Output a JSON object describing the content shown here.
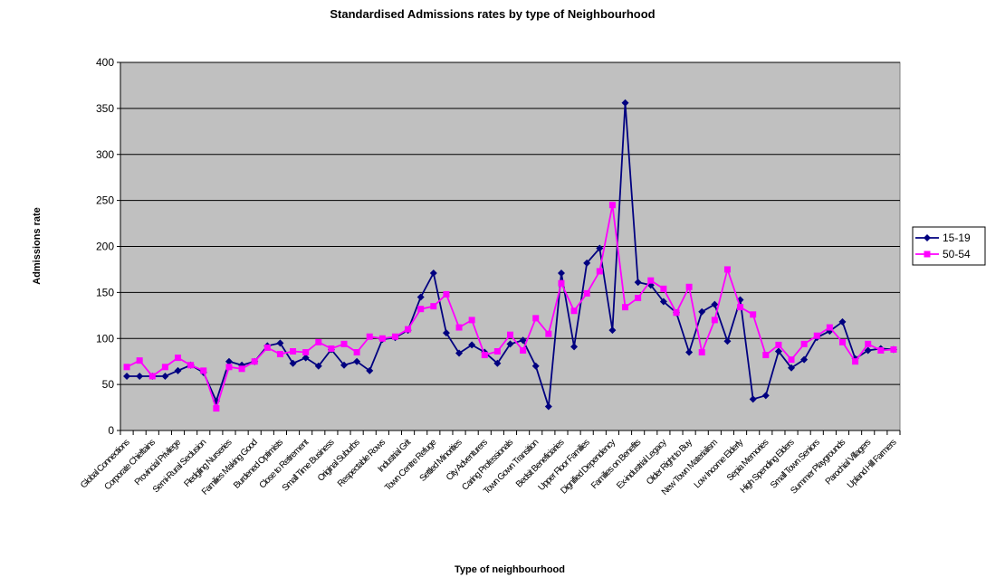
{
  "chart_data": {
    "type": "line",
    "title": "Standardised Admissions rates by type of Neighbourhood",
    "xlabel": "Type of neighbourhood",
    "ylabel": "Admissions rate",
    "ylim": [
      0,
      400
    ],
    "yticks": [
      0,
      50,
      100,
      150,
      200,
      250,
      300,
      350,
      400
    ],
    "grid": true,
    "legend": "right",
    "x_tick_labels": [
      "Global Connections",
      "Corporate Chieftains",
      "Provincial Privilege",
      "Semi-Rural Seclusion",
      "Fledgling Nurseries",
      "Families Making Good",
      "Burdened Optimists",
      "Close to Retirement",
      "Small Time Business",
      "Original Suburbs",
      "Respectable Rows",
      "Industrial Grit",
      "Town Centre Refuge",
      "Settled Minorities",
      "City Adventurers",
      "Caring Professionals",
      "Town Gown Transition",
      "Bedsit Beneficiaries",
      "Upper Floor Families",
      "Dignified Dependency",
      "Families on Benefits",
      "Ex-industrial Legacy",
      "Older Right to Buy",
      "New Town Materialism",
      "Low Income Elderly",
      "Sepia Memories",
      "High Spending Elders",
      "Small Town Seniors",
      "Summer Playgrounds",
      "Parochial Villagers",
      "Upland Hill Farmers"
    ],
    "series": [
      {
        "name": "15-19",
        "color": "#000080",
        "marker": "diamond",
        "values": [
          59,
          59,
          59,
          59,
          65,
          71,
          63,
          32,
          75,
          71,
          75,
          92,
          95,
          73,
          79,
          70,
          88,
          71,
          75,
          65,
          99,
          101,
          109,
          145,
          171,
          106,
          84,
          93,
          85,
          73,
          94,
          98,
          70,
          26,
          171,
          91,
          182,
          198,
          109,
          356,
          161,
          158,
          140,
          128,
          85,
          129,
          137,
          97,
          142,
          34,
          38,
          86,
          68,
          77,
          101,
          108,
          118,
          78,
          87,
          89,
          88
        ]
      },
      {
        "name": "50-54",
        "color": "#ff00ff",
        "marker": "square",
        "values": [
          69,
          76,
          59,
          69,
          79,
          71,
          65,
          24,
          69,
          67,
          75,
          90,
          83,
          86,
          85,
          96,
          89,
          94,
          85,
          102,
          100,
          102,
          110,
          132,
          135,
          148,
          112,
          120,
          82,
          86,
          104,
          87,
          122,
          105,
          160,
          130,
          149,
          173,
          245,
          134,
          144,
          163,
          154,
          128,
          156,
          85,
          120,
          175,
          134,
          126,
          82,
          93,
          77,
          94,
          103,
          112,
          96,
          75,
          94,
          87,
          88
        ]
      }
    ],
    "colors": {
      "plot_bg": "#c0c0c0",
      "grid": "#000000"
    }
  }
}
